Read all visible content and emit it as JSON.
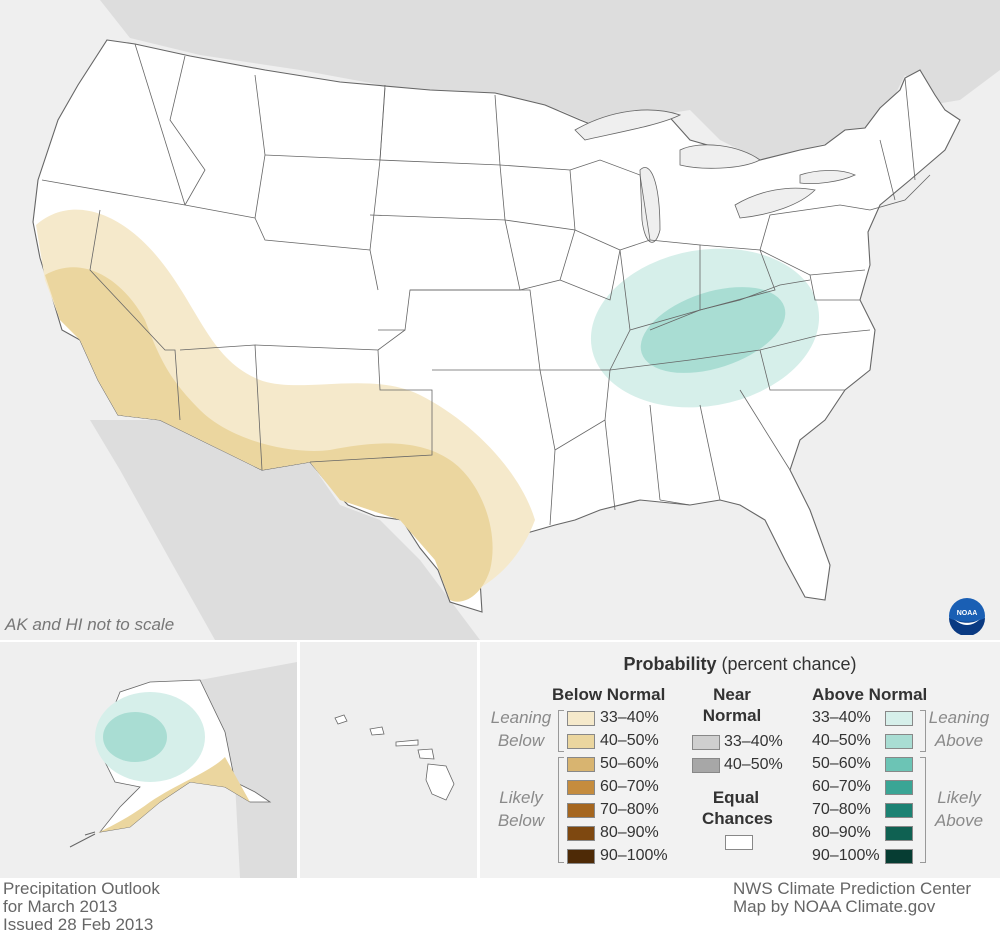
{
  "map": {
    "scale_note": "AK and HI not to scale",
    "logo_text": "NOAA",
    "colors": {
      "ocean": "#efefef",
      "land_other": "#dddddd",
      "states": "#ffffff",
      "border": "#666666",
      "below_33_40": "#f5e9cb",
      "below_40_50": "#ebd69f",
      "above_33_40": "#d6efea",
      "above_40_50": "#a9ddd3"
    }
  },
  "legend": {
    "title": "Probability",
    "title_sub": "(percent chance)",
    "below_normal": {
      "heading": "Below Normal",
      "leaning_label": [
        "Leaning",
        "Below"
      ],
      "likely_label": [
        "Likely",
        "Below"
      ],
      "rows": [
        {
          "label": "33–40%",
          "color": "#f5e9cb"
        },
        {
          "label": "40–50%",
          "color": "#ebd69f"
        },
        {
          "label": "50–60%",
          "color": "#d8b470"
        },
        {
          "label": "60–70%",
          "color": "#c58c3e"
        },
        {
          "label": "70–80%",
          "color": "#a5661f"
        },
        {
          "label": "80–90%",
          "color": "#7e4810"
        },
        {
          "label": "90–100%",
          "color": "#4e2a06"
        }
      ]
    },
    "near_normal": {
      "heading": [
        "Near",
        "Normal"
      ],
      "rows": [
        {
          "label": "33–40%",
          "color": "#cfcfcf"
        },
        {
          "label": "40–50%",
          "color": "#a7a7a7"
        }
      ]
    },
    "equal_chances": {
      "heading": [
        "Equal",
        "Chances"
      ],
      "color": "#ffffff"
    },
    "above_normal": {
      "heading": "Above Normal",
      "leaning_label": [
        "Leaning",
        "Above"
      ],
      "likely_label": [
        "Likely",
        "Above"
      ],
      "rows": [
        {
          "label": "33–40%",
          "color": "#d6efea"
        },
        {
          "label": "40–50%",
          "color": "#a9ddd3"
        },
        {
          "label": "50–60%",
          "color": "#6cc4b5"
        },
        {
          "label": "60–70%",
          "color": "#3aa595"
        },
        {
          "label": "70–80%",
          "color": "#1c8273"
        },
        {
          "label": "80–90%",
          "color": "#0f6152"
        },
        {
          "label": "90–100%",
          "color": "#063d33"
        }
      ]
    }
  },
  "footer": {
    "left": [
      "Precipitation Outlook",
      "for March 2013",
      "Issued 28 Feb 2013"
    ],
    "right": [
      "NWS Climate Prediction Center",
      "Map by NOAA Climate.gov"
    ]
  }
}
